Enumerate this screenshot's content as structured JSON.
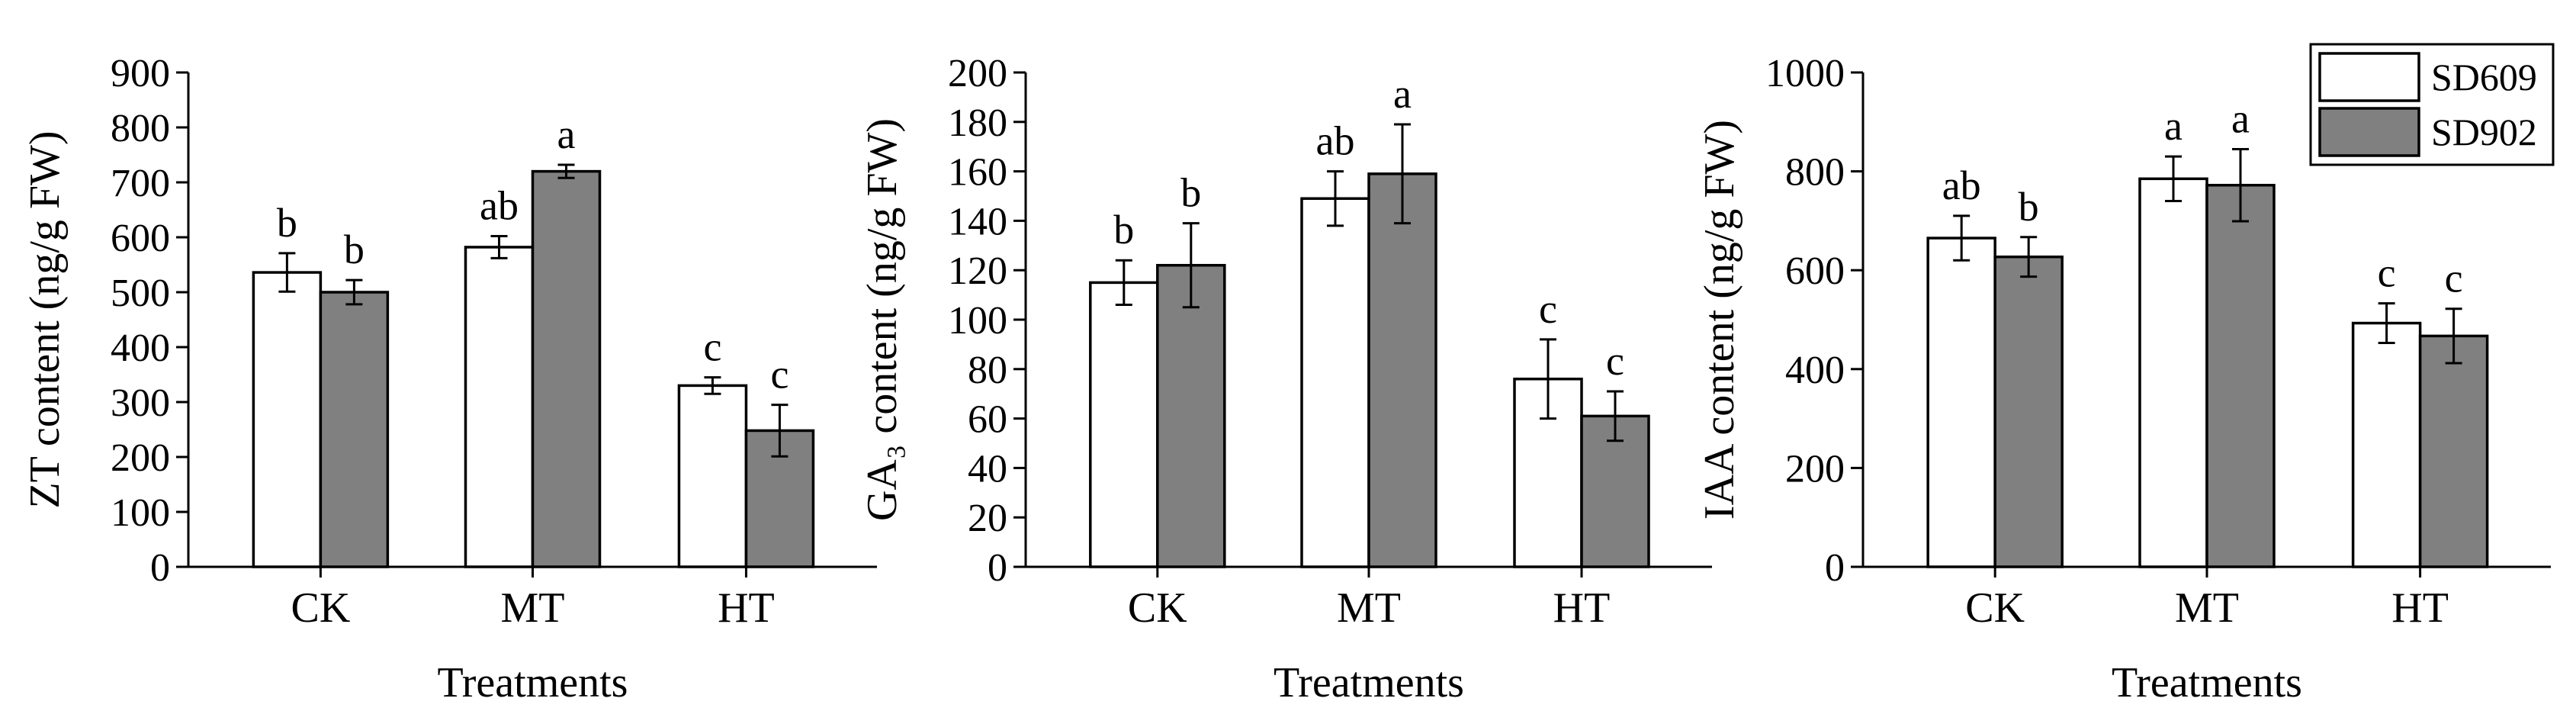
{
  "colors": {
    "SD609": "#ffffff",
    "SD902": "#808080",
    "axis": "#000000"
  },
  "legend": {
    "placement": "top-right",
    "entries": [
      "SD609",
      "SD902"
    ]
  },
  "chart_data": [
    {
      "type": "bar",
      "title": "",
      "xlabel": "Treatments",
      "ylabel": "ZT content (ng/g FW)",
      "categories": [
        "CK",
        "MT",
        "HT"
      ],
      "ylim": [
        0,
        900
      ],
      "yticks": [
        0,
        100,
        200,
        300,
        400,
        500,
        600,
        700,
        800,
        900
      ],
      "series": [
        {
          "name": "SD609",
          "values": [
            536,
            582,
            330
          ],
          "errors": [
            35,
            20,
            15
          ],
          "labels": [
            "b",
            "ab",
            "c"
          ]
        },
        {
          "name": "SD902",
          "values": [
            500,
            720,
            248
          ],
          "errors": [
            22,
            12,
            47
          ],
          "labels": [
            "b",
            "a",
            "c"
          ]
        }
      ]
    },
    {
      "type": "bar",
      "title": "",
      "xlabel": "Treatments",
      "ylabel": "GA₃ content (ng/g FW)",
      "categories": [
        "CK",
        "MT",
        "HT"
      ],
      "ylim": [
        0,
        200
      ],
      "yticks": [
        0,
        20,
        40,
        60,
        80,
        100,
        120,
        140,
        160,
        180,
        200
      ],
      "series": [
        {
          "name": "SD609",
          "values": [
            115,
            149,
            76
          ],
          "errors": [
            9,
            11,
            16
          ],
          "labels": [
            "b",
            "ab",
            "c"
          ]
        },
        {
          "name": "SD902",
          "values": [
            122,
            159,
            61
          ],
          "errors": [
            17,
            20,
            10
          ],
          "labels": [
            "b",
            "a",
            "c"
          ]
        }
      ]
    },
    {
      "type": "bar",
      "title": "",
      "xlabel": "Treatments",
      "ylabel": "IAA content (ng/g FW)",
      "categories": [
        "CK",
        "MT",
        "HT"
      ],
      "ylim": [
        0,
        1000
      ],
      "yticks": [
        0,
        200,
        400,
        600,
        800,
        1000
      ],
      "series": [
        {
          "name": "SD609",
          "values": [
            665,
            785,
            493
          ],
          "errors": [
            45,
            45,
            40
          ],
          "labels": [
            "ab",
            "a",
            "c"
          ]
        },
        {
          "name": "SD902",
          "values": [
            627,
            772,
            467
          ],
          "errors": [
            40,
            73,
            55
          ],
          "labels": [
            "b",
            "a",
            "c"
          ]
        }
      ]
    }
  ]
}
